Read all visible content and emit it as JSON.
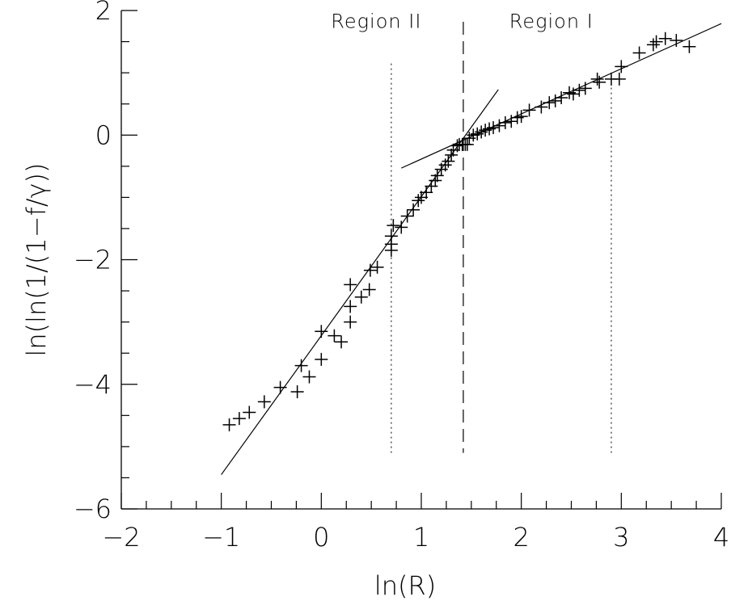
{
  "chart_data": {
    "type": "scatter",
    "xlabel": "ln(R)",
    "ylabel": "ln(ln(1/(1−f/γ))",
    "xlim": [
      -2,
      4
    ],
    "ylim": [
      -6,
      2
    ],
    "x_ticks": [
      -2,
      -1,
      0,
      1,
      2,
      3,
      4
    ],
    "x_tick_labels": [
      "−2",
      "−1",
      "0",
      "1",
      "2",
      "3",
      "4"
    ],
    "y_ticks": [
      -6,
      -4,
      -2,
      0,
      2
    ],
    "y_tick_labels": [
      "−6",
      "−4",
      "−2",
      "0",
      "2"
    ],
    "annotations": [
      {
        "text": "Region II",
        "x": 0.55,
        "y": 1.72
      },
      {
        "text": "Region I",
        "x": 2.3,
        "y": 1.72
      }
    ],
    "region_boundary_x": 1.42,
    "dotted_lines": [
      {
        "x": 0.7,
        "y_range": [
          -5.1,
          1.15
        ]
      },
      {
        "x": 2.9,
        "y_range": [
          -5.1,
          0.8
        ]
      }
    ],
    "fit_lines": [
      {
        "x": [
          -1.0,
          1.77
        ],
        "y": [
          -5.45,
          0.73
        ]
      },
      {
        "x": [
          0.8,
          4.0
        ],
        "y": [
          -0.53,
          1.79
        ]
      }
    ],
    "series": [
      {
        "marker": "+",
        "points": [
          [
            -0.92,
            -4.65
          ],
          [
            -0.82,
            -4.55
          ],
          [
            -0.72,
            -4.45
          ],
          [
            -0.57,
            -4.28
          ],
          [
            -0.41,
            -4.05
          ],
          [
            -0.24,
            -4.12
          ],
          [
            -0.2,
            -3.7
          ],
          [
            -0.12,
            -3.88
          ],
          [
            0.0,
            -3.6
          ],
          [
            0.0,
            -3.15
          ],
          [
            0.13,
            -3.22
          ],
          [
            0.2,
            -3.32
          ],
          [
            0.29,
            -3.0
          ],
          [
            0.29,
            -2.75
          ],
          [
            0.29,
            -2.4
          ],
          [
            0.4,
            -2.6
          ],
          [
            0.48,
            -2.48
          ],
          [
            0.49,
            -2.17
          ],
          [
            0.56,
            -2.12
          ],
          [
            0.7,
            -1.85
          ],
          [
            0.7,
            -1.75
          ],
          [
            0.7,
            -1.62
          ],
          [
            0.72,
            -1.45
          ],
          [
            0.8,
            -1.48
          ],
          [
            0.86,
            -1.3
          ],
          [
            0.92,
            -1.2
          ],
          [
            0.97,
            -1.05
          ],
          [
            1.0,
            -1.0
          ],
          [
            1.05,
            -0.92
          ],
          [
            1.1,
            -0.82
          ],
          [
            1.14,
            -0.73
          ],
          [
            1.16,
            -0.65
          ],
          [
            1.2,
            -0.55
          ],
          [
            1.24,
            -0.48
          ],
          [
            1.27,
            -0.42
          ],
          [
            1.3,
            -0.32
          ],
          [
            1.32,
            -0.24
          ],
          [
            1.36,
            -0.17
          ],
          [
            1.38,
            -0.15
          ],
          [
            1.41,
            -0.15
          ],
          [
            1.44,
            -0.15
          ],
          [
            1.46,
            -0.15
          ],
          [
            1.48,
            -0.05
          ],
          [
            1.52,
            0.0
          ],
          [
            1.56,
            0.02
          ],
          [
            1.6,
            0.05
          ],
          [
            1.64,
            0.08
          ],
          [
            1.68,
            0.1
          ],
          [
            1.72,
            0.12
          ],
          [
            1.78,
            0.15
          ],
          [
            1.84,
            0.2
          ],
          [
            1.9,
            0.22
          ],
          [
            1.96,
            0.28
          ],
          [
            2.0,
            0.3
          ],
          [
            2.08,
            0.4
          ],
          [
            2.2,
            0.45
          ],
          [
            2.28,
            0.52
          ],
          [
            2.34,
            0.55
          ],
          [
            2.4,
            0.6
          ],
          [
            2.48,
            0.68
          ],
          [
            2.52,
            0.66
          ],
          [
            2.58,
            0.72
          ],
          [
            2.64,
            0.75
          ],
          [
            2.76,
            0.9
          ],
          [
            2.78,
            0.85
          ],
          [
            2.9,
            0.9
          ],
          [
            2.98,
            0.9
          ],
          [
            3.0,
            1.1
          ],
          [
            3.18,
            1.32
          ],
          [
            3.32,
            1.45
          ],
          [
            3.35,
            1.5
          ],
          [
            3.44,
            1.55
          ],
          [
            3.55,
            1.52
          ],
          [
            3.68,
            1.42
          ]
        ]
      }
    ]
  }
}
